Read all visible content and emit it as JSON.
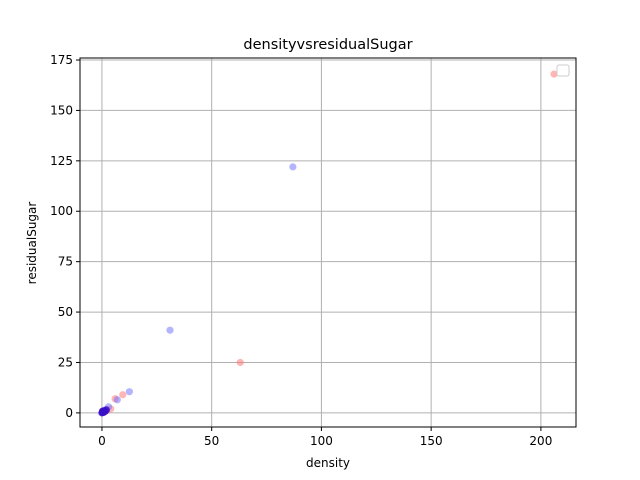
{
  "chart_data": {
    "type": "scatter",
    "title": "densityvsresidualSugar",
    "xlabel": "density",
    "ylabel": "residualSugar",
    "xlim": [
      -10,
      216
    ],
    "ylim": [
      -7,
      176
    ],
    "xticks": [
      0,
      50,
      100,
      150,
      200
    ],
    "yticks": [
      0,
      25,
      50,
      75,
      100,
      125,
      150,
      175
    ],
    "grid": true,
    "legend": "upper-right-empty",
    "colors": {
      "series_a": "#ff6b6b",
      "series_b": "#6b6bff",
      "dense_cluster": "#3a10c8",
      "grid": "#b0b0b0"
    },
    "series": [
      {
        "color_key": "series_a",
        "points": [
          {
            "x": 206,
            "y": 168
          },
          {
            "x": 63,
            "y": 25
          },
          {
            "x": 9.5,
            "y": 9
          },
          {
            "x": 6,
            "y": 7
          },
          {
            "x": 4,
            "y": 2
          },
          {
            "x": 2,
            "y": 1
          },
          {
            "x": 0.5,
            "y": 0.5
          }
        ]
      },
      {
        "color_key": "series_b",
        "points": [
          {
            "x": 87,
            "y": 122
          },
          {
            "x": 31,
            "y": 41
          },
          {
            "x": 12.5,
            "y": 10.5
          },
          {
            "x": 7,
            "y": 6.5
          },
          {
            "x": 3,
            "y": 3
          },
          {
            "x": 1.5,
            "y": 1.5
          },
          {
            "x": 0.3,
            "y": 0.3
          }
        ]
      },
      {
        "color_key": "dense_cluster",
        "points": [
          {
            "x": 0,
            "y": 0
          },
          {
            "x": 0.2,
            "y": 0.5
          },
          {
            "x": 0.5,
            "y": 0.2
          },
          {
            "x": 1,
            "y": 1
          },
          {
            "x": 0.8,
            "y": 0.3
          },
          {
            "x": 0.3,
            "y": 0.9
          },
          {
            "x": 1.5,
            "y": 0.8
          },
          {
            "x": 2,
            "y": 1.5
          }
        ]
      }
    ]
  }
}
